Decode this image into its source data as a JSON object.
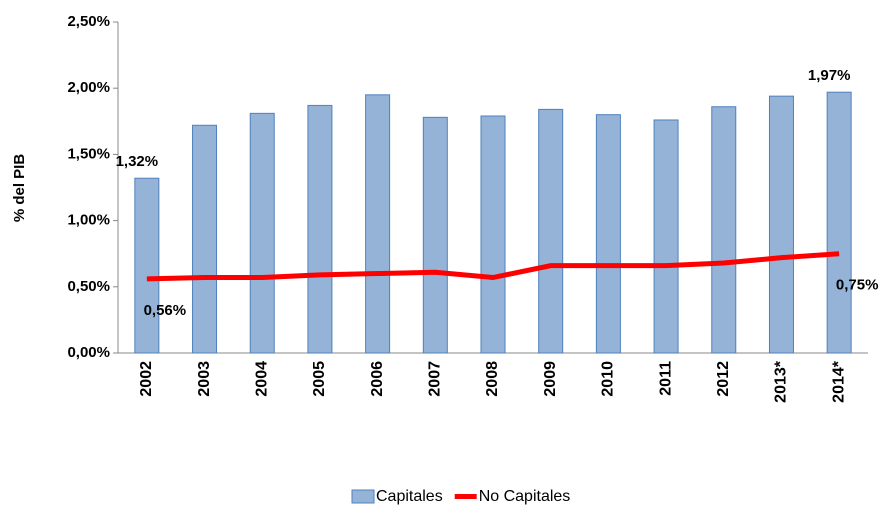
{
  "chart_data": {
    "type": "bar_line",
    "y_label": "% del PIB",
    "categories": [
      "2002",
      "2003",
      "2004",
      "2005",
      "2006",
      "2007",
      "2008",
      "2009",
      "2010",
      "2011",
      "2012",
      "2013*",
      "2014*"
    ],
    "series": [
      {
        "name": "Capitales",
        "type": "bar",
        "color": "#95b3d7",
        "stroke": "#4f81bd",
        "values": [
          1.32,
          1.72,
          1.81,
          1.87,
          1.95,
          1.78,
          1.79,
          1.84,
          1.8,
          1.76,
          1.86,
          1.94,
          1.97
        ],
        "value_labels": [
          "1,32%",
          null,
          null,
          null,
          null,
          null,
          null,
          null,
          null,
          null,
          null,
          null,
          "1,97%"
        ]
      },
      {
        "name": "No Capitales",
        "type": "line",
        "color": "#ff0000",
        "values": [
          0.56,
          0.57,
          0.57,
          0.59,
          0.6,
          0.61,
          0.57,
          0.66,
          0.66,
          0.66,
          0.68,
          0.72,
          0.75
        ],
        "value_labels": [
          "0,56%",
          null,
          null,
          null,
          null,
          null,
          null,
          null,
          null,
          null,
          null,
          null,
          "0,75%"
        ]
      }
    ],
    "ylim": [
      0,
      2.5
    ],
    "yticks": [
      {
        "value": 0,
        "label": "0,00%"
      },
      {
        "value": 0.5,
        "label": "0,50%"
      },
      {
        "value": 1,
        "label": "1,00%"
      },
      {
        "value": 1.5,
        "label": "1,50%"
      },
      {
        "value": 2,
        "label": "2,00%"
      },
      {
        "value": 2.5,
        "label": "2,50%"
      }
    ],
    "legend": "bottom"
  }
}
